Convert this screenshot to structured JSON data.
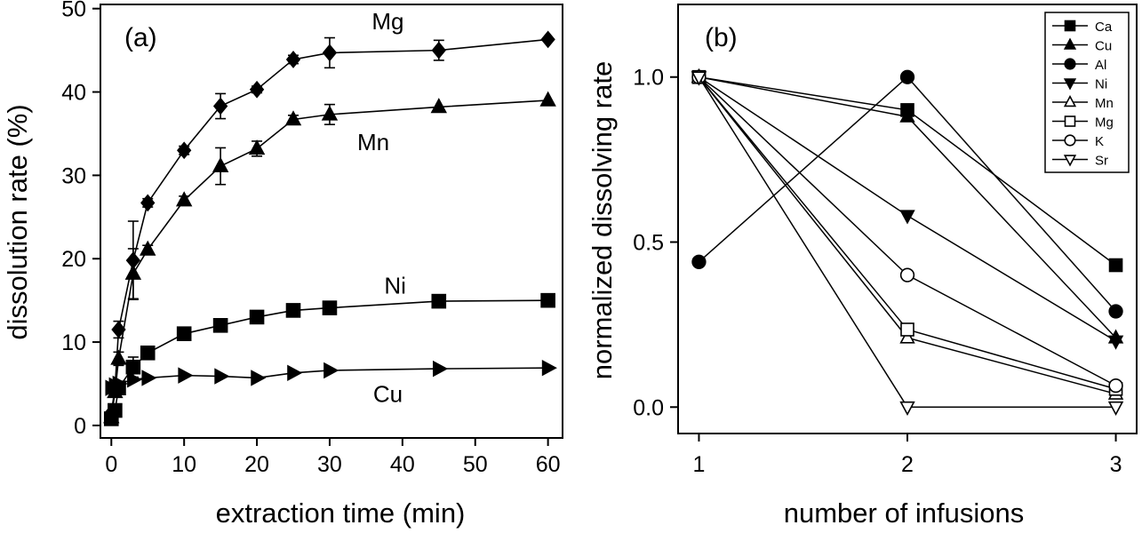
{
  "chart_data": [
    {
      "type": "line",
      "panel_label": "(a)",
      "xlabel": "extraction time (min)",
      "ylabel": "dissolution rate (%)",
      "xlim": [
        -1.5,
        62
      ],
      "ylim": [
        -1.5,
        50.5
      ],
      "xticks": [
        0,
        10,
        20,
        30,
        40,
        50,
        60
      ],
      "yticks": [
        0,
        10,
        20,
        30,
        40,
        50
      ],
      "legend": "none",
      "grid": false,
      "series": [
        {
          "name": "Mg",
          "marker": "diamond",
          "x": [
            0,
            0.5,
            1,
            3,
            5,
            10,
            15,
            20,
            25,
            30,
            45,
            60
          ],
          "y": [
            1.5,
            4.5,
            11.5,
            19.8,
            26.7,
            33.0,
            38.3,
            40.3,
            43.9,
            44.7,
            45.0,
            46.3
          ],
          "err": [
            0,
            0,
            1.0,
            4.7,
            0.5,
            0.5,
            1.5,
            0.4,
            0.5,
            1.8,
            1.2,
            0
          ]
        },
        {
          "name": "Mn",
          "marker": "triangle-up",
          "x": [
            0,
            0.5,
            1,
            3,
            5,
            10,
            15,
            20,
            25,
            30,
            45,
            60
          ],
          "y": [
            1.0,
            4.0,
            8.0,
            18.2,
            21.1,
            27.0,
            31.1,
            33.2,
            36.7,
            37.3,
            38.2,
            39.0
          ],
          "err": [
            0,
            0,
            0.8,
            3.0,
            0.5,
            0.5,
            2.2,
            0.9,
            0.5,
            1.2,
            0,
            0
          ]
        },
        {
          "name": "Ni",
          "marker": "square",
          "x": [
            0,
            0.5,
            1,
            3,
            5,
            10,
            15,
            20,
            25,
            30,
            45,
            60
          ],
          "y": [
            0.8,
            1.8,
            4.5,
            7.0,
            8.7,
            11.0,
            12.0,
            13.0,
            13.8,
            14.1,
            14.9,
            15.0
          ],
          "err": [
            0,
            0,
            0,
            1.2,
            0,
            0,
            0,
            0,
            0,
            0,
            0,
            0
          ]
        },
        {
          "name": "Cu",
          "marker": "triangle-right",
          "x": [
            0,
            0.5,
            1,
            3,
            5,
            10,
            15,
            20,
            25,
            30,
            45,
            60
          ],
          "y": [
            4.5,
            4.8,
            5.0,
            5.5,
            5.7,
            6.0,
            5.9,
            5.7,
            6.3,
            6.6,
            6.8,
            6.9
          ],
          "err": [
            0,
            0,
            0,
            0,
            0,
            0,
            0,
            0,
            0,
            0,
            0,
            0
          ]
        }
      ],
      "annotations": [
        {
          "text": "Mg",
          "x": 38,
          "y": 48.5
        },
        {
          "text": "Mn",
          "x": 36,
          "y": 34.0
        },
        {
          "text": "Ni",
          "x": 39,
          "y": 16.8
        },
        {
          "text": "Cu",
          "x": 38,
          "y": 3.8
        }
      ]
    },
    {
      "type": "line",
      "panel_label": "(b)",
      "xlabel": "number of infusions",
      "ylabel": "normalized dissolving rate",
      "xlim": [
        0.9,
        3.1
      ],
      "ylim": [
        -0.08,
        1.22
      ],
      "xticks": [
        1,
        2,
        3
      ],
      "yticks": [
        0.0,
        0.5,
        1.0
      ],
      "ytick_labels": [
        "0.0",
        "0.5",
        "1.0"
      ],
      "legend": "top-right",
      "grid": false,
      "series": [
        {
          "name": "Ca",
          "marker": "square",
          "filled": true,
          "x": [
            1,
            2,
            3
          ],
          "y": [
            1.0,
            0.9,
            0.43
          ]
        },
        {
          "name": "Cu",
          "marker": "triangle-up",
          "filled": true,
          "x": [
            1,
            2,
            3
          ],
          "y": [
            1.0,
            0.88,
            0.21
          ]
        },
        {
          "name": "Al",
          "marker": "circle",
          "filled": true,
          "x": [
            1,
            2,
            3
          ],
          "y": [
            0.44,
            1.0,
            0.29
          ]
        },
        {
          "name": "Ni",
          "marker": "triangle-down",
          "filled": true,
          "x": [
            1,
            2,
            3
          ],
          "y": [
            1.0,
            0.58,
            0.2
          ]
        },
        {
          "name": "Mn",
          "marker": "triangle-up",
          "filled": false,
          "x": [
            1,
            2,
            3
          ],
          "y": [
            1.0,
            0.21,
            0.04
          ]
        },
        {
          "name": "Mg",
          "marker": "square",
          "filled": false,
          "x": [
            1,
            2,
            3
          ],
          "y": [
            1.0,
            0.235,
            0.055
          ]
        },
        {
          "name": "K",
          "marker": "circle",
          "filled": false,
          "x": [
            1,
            2,
            3
          ],
          "y": [
            1.0,
            0.4,
            0.065
          ]
        },
        {
          "name": "Sr",
          "marker": "triangle-down",
          "filled": false,
          "x": [
            1,
            2,
            3
          ],
          "y": [
            1.0,
            0.0,
            0.0
          ]
        }
      ]
    }
  ]
}
